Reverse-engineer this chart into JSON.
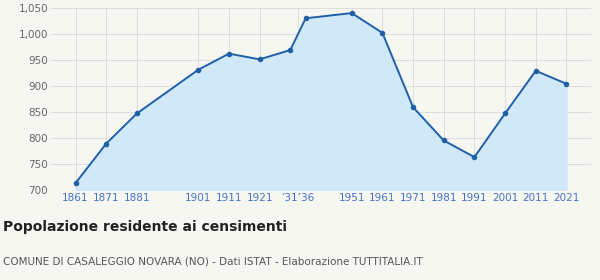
{
  "years": [
    1861,
    1871,
    1881,
    1901,
    1911,
    1921,
    1931,
    1936,
    1951,
    1961,
    1971,
    1981,
    1991,
    2001,
    2011,
    2021
  ],
  "population": [
    714,
    790,
    848,
    932,
    963,
    952,
    970,
    1031,
    1041,
    1003,
    860,
    796,
    764,
    848,
    930,
    905
  ],
  "line_color": "#2060a8",
  "fill_color": "#d0e8f8",
  "marker_color": "#2060a8",
  "background_color": "#f7f7f2",
  "grid_color": "#dddddd",
  "ylim": [
    700,
    1050
  ],
  "yticks": [
    700,
    750,
    800,
    850,
    900,
    950,
    1000,
    1050
  ],
  "title": "Popolazione residente ai censimenti",
  "subtitle": "COMUNE DI CASALEGGIO NOVARA (NO) - Dati ISTAT - Elaborazione TUTTITALIA.IT",
  "title_fontsize": 10,
  "subtitle_fontsize": 7.5,
  "tick_label_color": "#4472c4",
  "ytick_color": "#666666",
  "xlim_left": 1853,
  "xlim_right": 2029
}
